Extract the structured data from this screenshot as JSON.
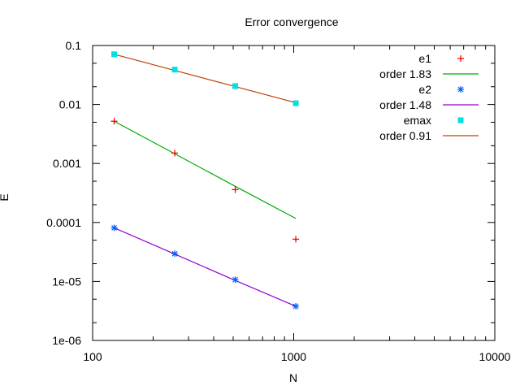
{
  "chart_data": {
    "type": "line",
    "title": "Error convergence",
    "xlabel": "N",
    "ylabel": "E",
    "xscale": "log",
    "yscale": "log",
    "xlim": [
      100,
      10000
    ],
    "ylim": [
      1e-06,
      0.1
    ],
    "x_ticks": [
      "100",
      "1000",
      "10000"
    ],
    "y_ticks": [
      "0.1",
      "0.01",
      "0.001",
      "0.0001",
      "1e-05",
      "1e-06"
    ],
    "grid": false,
    "legend_position": "top-right inside",
    "x": [
      128,
      256,
      512,
      1024
    ],
    "series": [
      {
        "name": "e1",
        "kind": "points",
        "marker": "plus",
        "color": "#ff0000",
        "values": [
          0.0052,
          0.0015,
          0.00036,
          5.2e-05
        ]
      },
      {
        "name": "order 1.83",
        "kind": "line",
        "color": "#00aa00",
        "values": [
          0.0052,
          0.00146,
          0.00041,
          0.000117
        ]
      },
      {
        "name": "e2",
        "kind": "points",
        "marker": "asterisk",
        "color": "#0060ff",
        "values": [
          8.1e-05,
          2.95e-05,
          1.07e-05,
          3.8e-06
        ]
      },
      {
        "name": "order 1.48",
        "kind": "line",
        "color": "#9400d3",
        "values": [
          8.1e-05,
          2.91e-05,
          1.04e-05,
          3.8e-06
        ]
      },
      {
        "name": "emax",
        "kind": "points",
        "marker": "filled-square",
        "color": "#00e0e0",
        "values": [
          0.071,
          0.039,
          0.0205,
          0.0105
        ]
      },
      {
        "name": "order 0.91",
        "kind": "line",
        "color": "#c04000",
        "values": [
          0.071,
          0.0378,
          0.0201,
          0.0107
        ]
      }
    ]
  },
  "legend": [
    {
      "label": "e1"
    },
    {
      "label": "order 1.83"
    },
    {
      "label": "e2"
    },
    {
      "label": "order 1.48"
    },
    {
      "label": "emax"
    },
    {
      "label": "order 0.91"
    }
  ]
}
